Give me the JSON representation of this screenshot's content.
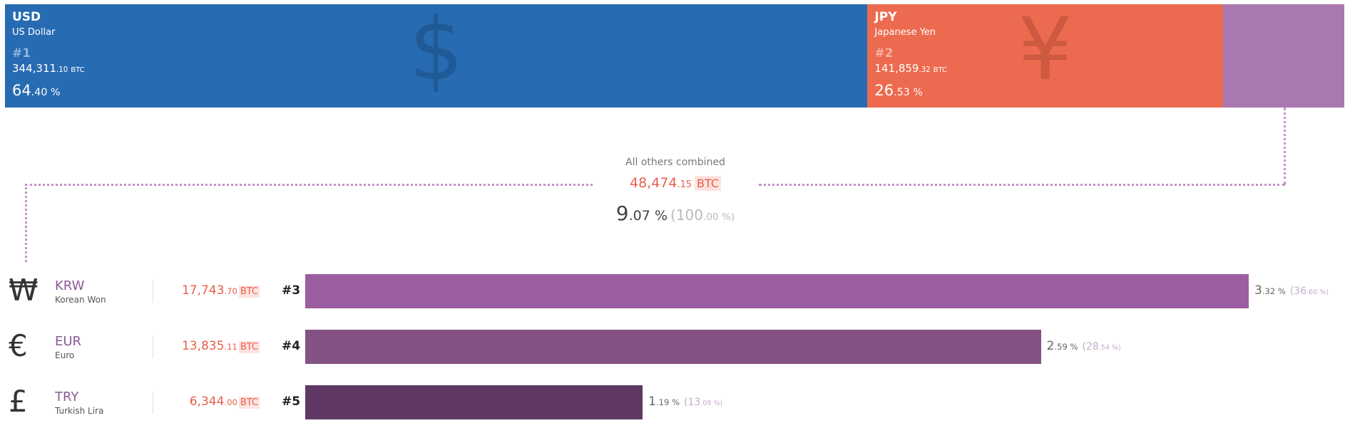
{
  "btc_unit": "BTC",
  "top": [
    {
      "code": "USD",
      "name": "US Dollar",
      "rank": "#1",
      "symbol": "$",
      "btc": "344,311.10",
      "share": {
        "value": 64.4,
        "label": "64.40 %"
      }
    },
    {
      "code": "JPY",
      "name": "Japanese Yen",
      "rank": "#2",
      "symbol": "¥",
      "btc": "141,859.32",
      "share": {
        "value": 26.53,
        "label": "26.53 %"
      }
    }
  ],
  "others": {
    "label": "All others combined",
    "btc": "48,474.15",
    "share": {
      "value": 9.07,
      "label": "9.07 %"
    },
    "total_share": {
      "value": 100,
      "label": "(100.00 %)"
    }
  },
  "rows": [
    {
      "symbol": "₩",
      "code": "KRW",
      "name": "Korean Won",
      "btc": "17,743.70",
      "rank": "#3",
      "share": {
        "value": 3.32,
        "label": "3.32 %"
      },
      "others_share": {
        "value": 36.6,
        "label": "(36.60 %)"
      }
    },
    {
      "symbol": "€",
      "code": "EUR",
      "name": "Euro",
      "btc": "13,835.11",
      "rank": "#4",
      "share": {
        "value": 2.59,
        "label": "2.59 %"
      },
      "others_share": {
        "value": 28.54,
        "label": "(28.54 %)"
      }
    },
    {
      "symbol": "£",
      "code": "TRY",
      "name": "Turkish Lira",
      "btc": "6,344.00",
      "rank": "#5",
      "share": {
        "value": 1.19,
        "label": "1.19 %"
      },
      "others_share": {
        "value": 13.09,
        "label": "(13.09 %)"
      }
    }
  ]
}
